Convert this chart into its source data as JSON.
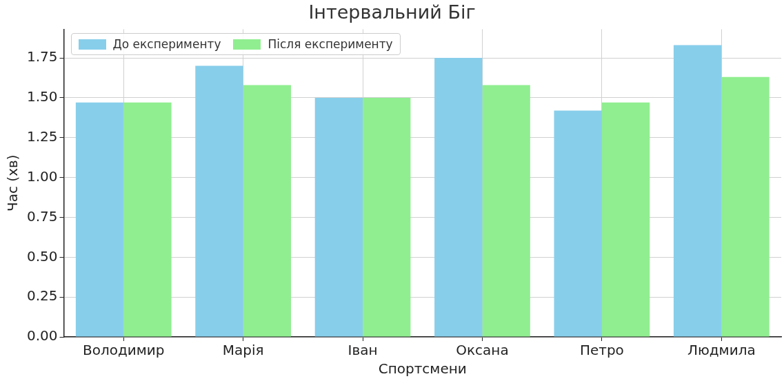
{
  "chart_data": {
    "type": "bar",
    "title": "Інтервальний Біг",
    "xlabel": "Спортсмени",
    "ylabel": "Час (хв)",
    "categories": [
      "Володимир",
      "Марія",
      "Іван",
      "Оксана",
      "Петро",
      "Людмила"
    ],
    "series": [
      {
        "name": "До експерименту",
        "color": "#87ceeb",
        "values": [
          1.47,
          1.7,
          1.5,
          1.75,
          1.42,
          1.83
        ]
      },
      {
        "name": "Після експерименту",
        "color": "#90ee90",
        "values": [
          1.47,
          1.58,
          1.5,
          1.58,
          1.47,
          1.63
        ]
      }
    ],
    "ylim": [
      0,
      1.93
    ],
    "yticks": [
      {
        "value": 0,
        "label": "0.00"
      },
      {
        "value": 0.25,
        "label": "0.25"
      },
      {
        "value": 0.5,
        "label": "0.50"
      },
      {
        "value": 0.75,
        "label": "0.75"
      },
      {
        "value": 1,
        "label": "1.00"
      },
      {
        "value": 1.25,
        "label": "1.25"
      },
      {
        "value": 1.5,
        "label": "1.50"
      },
      {
        "value": 1.75,
        "label": "1.75"
      }
    ],
    "grid": true,
    "legend": "top left"
  }
}
